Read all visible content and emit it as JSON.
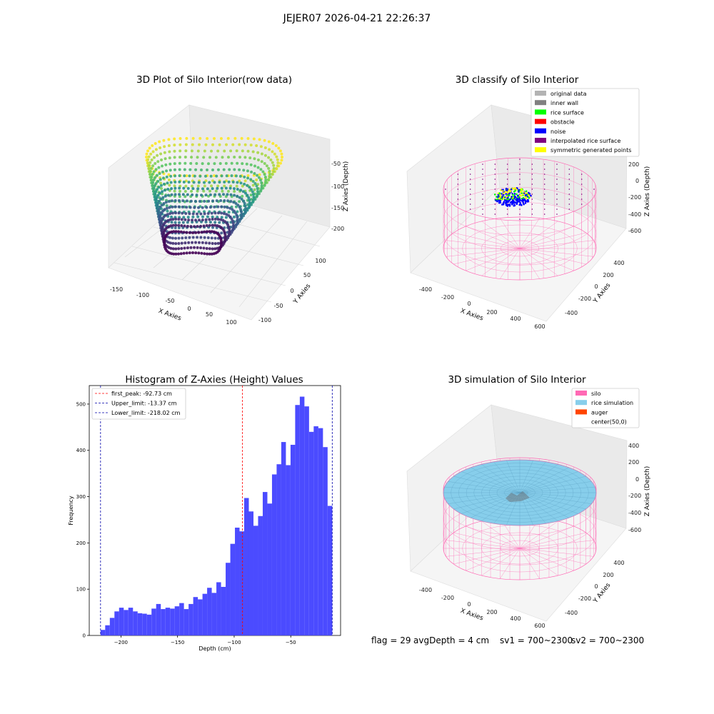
{
  "suptitle": "JEJER07 2026-04-21 22:26:37",
  "panels": {
    "raw": {
      "title": "3D Plot of Silo Interior(row data)",
      "xlabel": "X Axies",
      "ylabel": "Y Axies",
      "zlabel": "Z Axies (Depth)",
      "xticks": [
        "-150",
        "-100",
        "-50",
        "0",
        "50",
        "100"
      ],
      "yticks": [
        "-100",
        "-50",
        "0",
        "50",
        "100"
      ],
      "zticks": [
        "-50",
        "-100",
        "-150",
        "-200"
      ]
    },
    "classify": {
      "title": "3D classify of Silo Interior",
      "xlabel": "X Axies",
      "ylabel": "Y Axies",
      "zlabel": "Z Axies (Depth)",
      "xticks": [
        "-400",
        "-200",
        "0",
        "200",
        "400",
        "600"
      ],
      "yticks": [
        "-400",
        "-200",
        "0",
        "200",
        "400"
      ],
      "zticks": [
        "200",
        "0",
        "-200",
        "-400",
        "-600"
      ],
      "legend": [
        {
          "label": "original data",
          "color": "#b3b3b3"
        },
        {
          "label": "inner wall",
          "color": "#808080"
        },
        {
          "label": "rice surface",
          "color": "#00ff00"
        },
        {
          "label": "obstacle",
          "color": "#ff0000"
        },
        {
          "label": "noise",
          "color": "#0000ff"
        },
        {
          "label": "interpolated rice surface",
          "color": "#800080"
        },
        {
          "label": "symmetric generated points",
          "color": "#ffff00"
        }
      ]
    },
    "simulation": {
      "title": "3D simulation of Silo Interior",
      "xlabel": "X Axies",
      "ylabel": "Y Axies",
      "zlabel": "Z Axies (Depth)",
      "xticks": [
        "-400",
        "-200",
        "0",
        "200",
        "400",
        "600"
      ],
      "yticks": [
        "-400",
        "-200",
        "0",
        "200",
        "400"
      ],
      "zticks": [
        "400",
        "200",
        "0",
        "-200",
        "-400",
        "-600"
      ],
      "legend": [
        {
          "label": "silo",
          "color": "#ff69b4"
        },
        {
          "label": "rice simulation",
          "color": "#87ceeb"
        },
        {
          "label": "auger",
          "color": "#ff4500"
        },
        {
          "label": "center(50,0)",
          "color": "#ffffff"
        }
      ]
    }
  },
  "footer": {
    "flag": "flag = 29",
    "avg": "avgDepth = 4 cm",
    "sv1": "sv1 = 700~2300",
    "sv2": "sv2 = 700~2300"
  },
  "chart_data": {
    "type": "bar",
    "title": "Histogram of Z-Axies (Height) Values",
    "xlabel": "Depth (cm)",
    "ylabel": "Frequency",
    "xlim": [
      -228,
      -6
    ],
    "ylim": [
      0,
      540
    ],
    "xticks": [
      -200,
      -150,
      -100,
      -50
    ],
    "yticks": [
      0,
      100,
      200,
      300,
      400,
      500
    ],
    "bin_start": -218.02,
    "bin_width": 4.093,
    "values": [
      12,
      22,
      38,
      52,
      60,
      55,
      60,
      52,
      48,
      47,
      45,
      58,
      68,
      57,
      60,
      58,
      63,
      70,
      57,
      68,
      83,
      78,
      90,
      103,
      92,
      115,
      105,
      157,
      198,
      233,
      225,
      297,
      268,
      237,
      258,
      310,
      285,
      348,
      370,
      418,
      368,
      412,
      498,
      516,
      495,
      440,
      452,
      448,
      407,
      280
    ],
    "bar_color": "#4b4bff",
    "vlines": [
      {
        "label": "first_peak: -92.73 cm",
        "x": -92.73,
        "color": "#ff0000"
      },
      {
        "label": "Upper_limit: -13.37 cm",
        "x": -13.37,
        "color": "#0000aa"
      },
      {
        "label": "Lower_limit: -218.02 cm",
        "x": -218.02,
        "color": "#0000aa"
      }
    ],
    "legend_position": "upper-left"
  }
}
